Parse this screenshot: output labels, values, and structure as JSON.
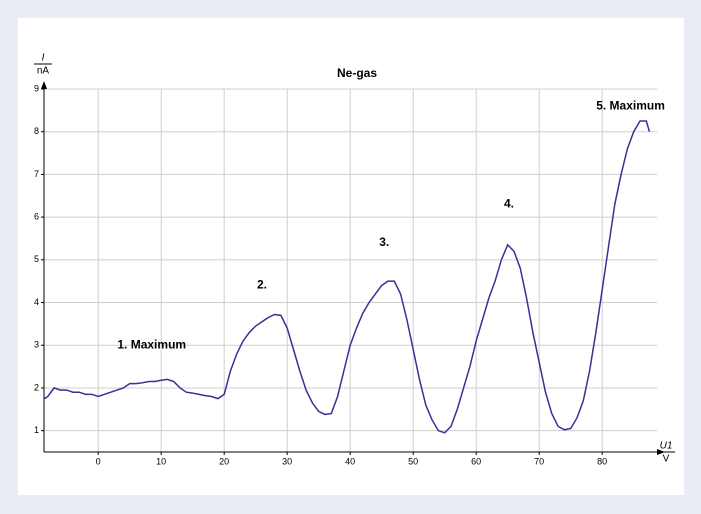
{
  "chart_data": {
    "type": "line",
    "title": "Ne-gas",
    "y_label": {
      "name": "I",
      "unit": "nA"
    },
    "x_label": {
      "name": "U1",
      "unit": "V"
    },
    "color": "#3b2f94",
    "grid": true,
    "xlim": [
      -8.6,
      88.7
    ],
    "ylim": [
      0.5,
      9
    ],
    "xticks": [
      0,
      10,
      20,
      30,
      40,
      50,
      60,
      70,
      80
    ],
    "yticks": [
      1,
      2,
      3,
      4,
      5,
      6,
      7,
      8,
      9
    ],
    "x": [
      -8.5,
      -8,
      -7,
      -6,
      -5,
      -4,
      -3,
      -2,
      -1,
      0,
      1,
      2,
      3,
      4,
      5,
      6,
      7,
      8,
      9,
      10,
      11,
      12,
      13,
      14,
      15,
      16,
      17,
      18,
      19,
      20,
      21,
      22,
      23,
      24,
      25,
      26,
      27,
      28,
      29,
      30,
      31,
      32,
      33,
      34,
      35,
      36,
      37,
      38,
      39,
      40,
      41,
      42,
      43,
      44,
      45,
      46,
      47,
      48,
      49,
      50,
      51,
      52,
      53,
      54,
      55,
      56,
      57,
      58,
      59,
      60,
      61,
      62,
      63,
      64,
      65,
      66,
      67,
      68,
      69,
      70,
      71,
      72,
      73,
      74,
      75,
      76,
      77,
      78,
      79,
      80,
      81,
      82,
      83,
      84,
      85,
      86,
      87,
      87.5
    ],
    "values": [
      1.75,
      1.8,
      2.0,
      1.95,
      1.95,
      1.9,
      1.9,
      1.85,
      1.85,
      1.8,
      1.85,
      1.9,
      1.95,
      2.0,
      2.1,
      2.1,
      2.12,
      2.15,
      2.15,
      2.18,
      2.2,
      2.15,
      2.0,
      1.9,
      1.88,
      1.85,
      1.82,
      1.8,
      1.75,
      1.85,
      2.4,
      2.8,
      3.1,
      3.3,
      3.45,
      3.55,
      3.65,
      3.72,
      3.7,
      3.4,
      2.9,
      2.4,
      1.95,
      1.65,
      1.45,
      1.38,
      1.4,
      1.8,
      2.4,
      3.0,
      3.4,
      3.75,
      4.0,
      4.2,
      4.4,
      4.5,
      4.5,
      4.2,
      3.6,
      2.9,
      2.2,
      1.6,
      1.25,
      1.0,
      0.95,
      1.1,
      1.5,
      2.0,
      2.5,
      3.1,
      3.6,
      4.1,
      4.5,
      5.0,
      5.35,
      5.2,
      4.8,
      4.1,
      3.3,
      2.6,
      1.9,
      1.4,
      1.1,
      1.02,
      1.05,
      1.3,
      1.7,
      2.4,
      3.3,
      4.3,
      5.3,
      6.3,
      7.0,
      7.6,
      8.0,
      8.25,
      8.25,
      8.0
    ],
    "annotations": [
      {
        "text": "1. Maximum",
        "x": 8.5,
        "y": 3.0
      },
      {
        "text": "2.",
        "x": 26,
        "y": 4.4
      },
      {
        "text": "3.",
        "x": 45.4,
        "y": 5.4
      },
      {
        "text": "4.",
        "x": 65.2,
        "y": 6.3
      },
      {
        "text": "5. Maximum",
        "x": 84.5,
        "y": 8.6
      }
    ]
  }
}
